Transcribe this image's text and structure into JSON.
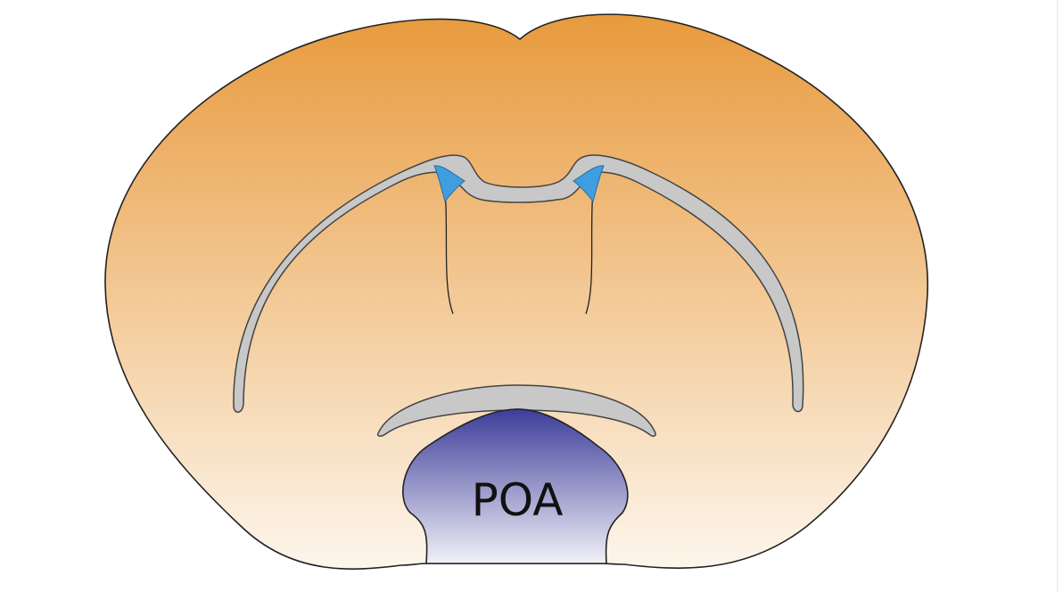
{
  "diagram": {
    "regions": [
      {
        "id": "poa",
        "label": "POA"
      }
    ]
  },
  "colors": {
    "section_top": "#e89a3d",
    "section_bottom": "#fdf6ec",
    "poa_top": "#3d3d9a",
    "poa_bottom": "#f1f1f8",
    "ventricle": "#c8c8c8",
    "ventricle_stroke": "#444444",
    "lateral_ventricle_blue": "#3f9ee0",
    "outline": "#222222"
  }
}
